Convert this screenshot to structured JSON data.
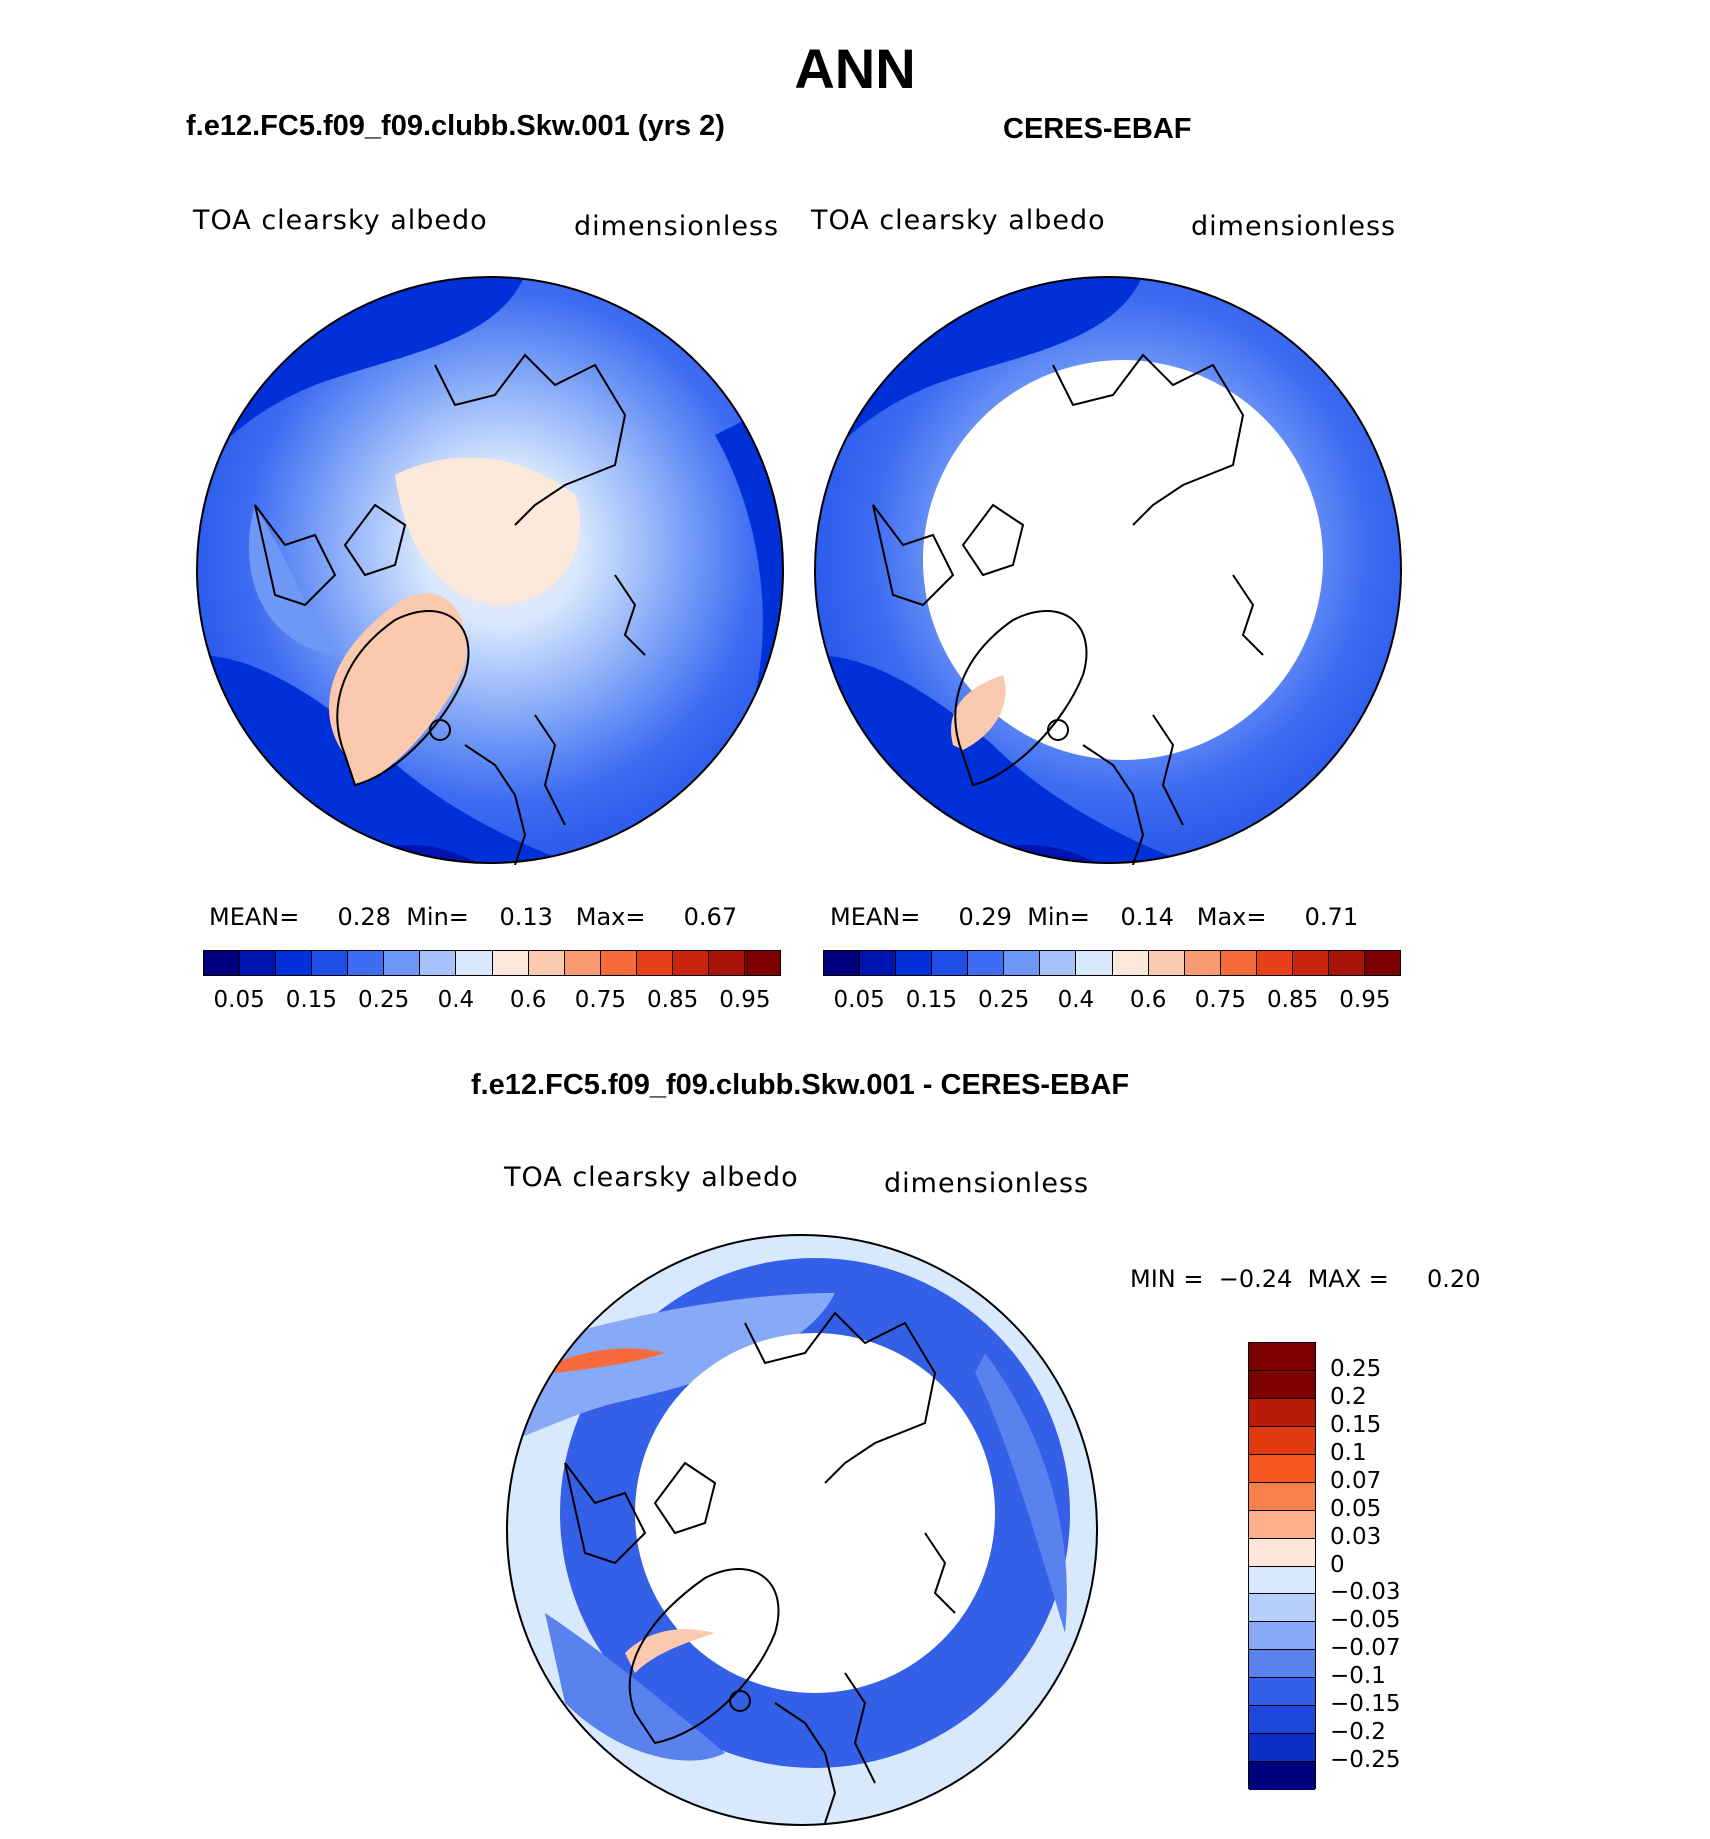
{
  "figure": {
    "title": "ANN"
  },
  "panels": [
    {
      "id": "model",
      "title": "f.e12.FC5.f09_f09.clubb.Skw.001 (yrs 2)",
      "variable": "TOA clearsky albedo",
      "units": "dimensionless",
      "stats": {
        "mean_label": "MEAN=",
        "mean": "0.28",
        "min_label": "Min=",
        "min": "0.13",
        "max_label": "Max=",
        "max": "0.67"
      }
    },
    {
      "id": "obs",
      "title": "CERES-EBAF",
      "variable": "TOA clearsky albedo",
      "units": "dimensionless",
      "stats": {
        "mean_label": "MEAN=",
        "mean": "0.29",
        "min_label": "Min=",
        "min": "0.14",
        "max_label": "Max=",
        "max": "0.71"
      }
    },
    {
      "id": "diff",
      "title": "f.e12.FC5.f09_f09.clubb.Skw.001 - CERES-EBAF",
      "variable": "TOA clearsky albedo",
      "units": "dimensionless",
      "stats": {
        "min_label": "MIN =",
        "min": "−0.24",
        "max_label": "MAX =",
        "max": "0.20"
      }
    }
  ],
  "colorbar_abs": {
    "colors": [
      "#00007f",
      "#0015b0",
      "#0030d8",
      "#1f4fe8",
      "#3e6cf2",
      "#6f97f6",
      "#a6c2fb",
      "#d8e8fd",
      "#fde8dc",
      "#fbc9ae",
      "#f89a72",
      "#f66b3c",
      "#e8401a",
      "#c7250e",
      "#a81308",
      "#7d0000"
    ],
    "ticks": [
      "0.05",
      "0.15",
      "0.25",
      "0.4",
      "0.6",
      "0.75",
      "0.85",
      "0.95"
    ]
  },
  "colorbar_diff": {
    "colors": [
      "#7d0000",
      "#b81c06",
      "#e23a10",
      "#f6561f",
      "#f8804a",
      "#fbb08a",
      "#fde5d8",
      "#d8e8fd",
      "#b5cefb",
      "#88a9f6",
      "#5a82ef",
      "#3360e6",
      "#1c46dc",
      "#0a2ec6",
      "#00007f"
    ],
    "ticks": [
      "0.25",
      "0.2",
      "0.15",
      "0.1",
      "0.07",
      "0.05",
      "0.03",
      "0",
      "−0.03",
      "−0.05",
      "−0.07",
      "−0.1",
      "−0.15",
      "−0.2",
      "−0.25"
    ]
  }
}
